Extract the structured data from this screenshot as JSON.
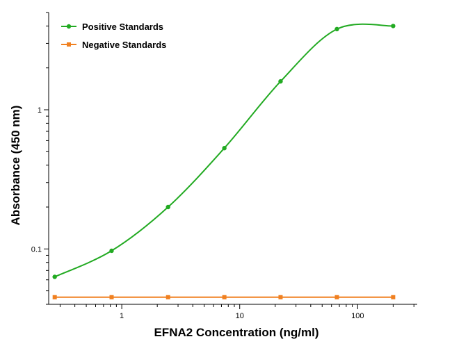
{
  "chart_data": {
    "type": "line",
    "xlabel": "EFNA2 Concentration (ng/ml)",
    "ylabel": "Absorbance (450 nm)",
    "xscale": "log",
    "yscale": "log",
    "xlim": [
      0.24,
      320
    ],
    "ylim": [
      0.04,
      5
    ],
    "xticks": [
      1,
      10,
      100
    ],
    "xtick_labels": [
      "1",
      "10",
      "100"
    ],
    "yticks": [
      0.1,
      1
    ],
    "ytick_labels": [
      "0.1",
      "1"
    ],
    "grid": false,
    "legend_position": "top-left",
    "series": [
      {
        "name": "Positive Standards",
        "color": "#22aa22",
        "marker": "circle",
        "x": [
          0.27,
          0.82,
          2.47,
          7.41,
          22.2,
          66.7,
          200
        ],
        "y": [
          0.063,
          0.097,
          0.2,
          0.53,
          1.6,
          3.8,
          4.0
        ]
      },
      {
        "name": "Negative Standards",
        "color": "#f08020",
        "marker": "square",
        "x": [
          0.27,
          0.82,
          2.47,
          7.41,
          22.2,
          66.7,
          200
        ],
        "y": [
          0.045,
          0.045,
          0.045,
          0.045,
          0.045,
          0.045,
          0.045
        ]
      }
    ]
  }
}
